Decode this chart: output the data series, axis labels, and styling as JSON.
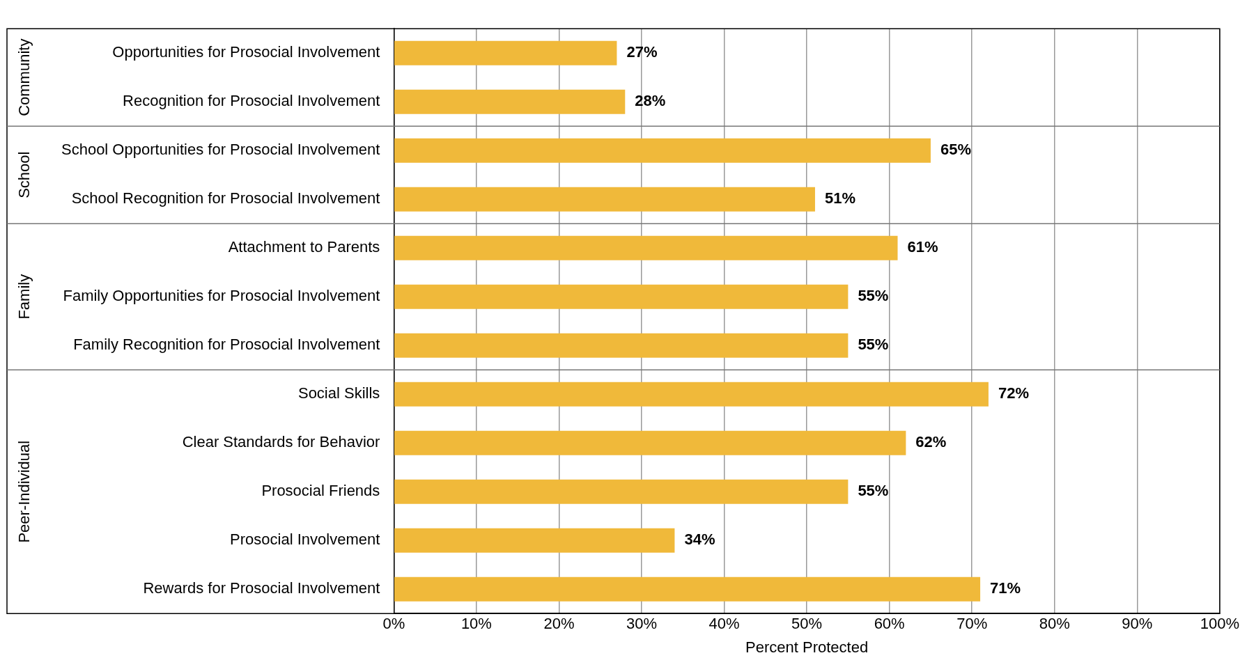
{
  "chart_data": {
    "type": "bar",
    "orientation": "horizontal",
    "xlabel": "Percent Protected",
    "categories": [
      "Opportunities for Prosocial Involvement",
      "Recognition for Prosocial Involvement",
      "School Opportunities for Prosocial Involvement",
      "School Recognition for Prosocial Involvement",
      "Attachment to Parents",
      "Family Opportunities for Prosocial Involvement",
      "Family Recognition for Prosocial Involvement",
      "Social Skills",
      "Clear Standards for Behavior",
      "Prosocial Friends",
      "Prosocial Involvement",
      "Rewards for Prosocial Involvement"
    ],
    "values": [
      27,
      28,
      65,
      51,
      61,
      55,
      55,
      72,
      62,
      55,
      34,
      71
    ],
    "color": "#f0b93a",
    "data_labels": true,
    "value_labels": [
      "27%",
      "28%",
      "65%",
      "51%",
      "61%",
      "55%",
      "55%",
      "72%",
      "62%",
      "55%",
      "34%",
      "71%"
    ],
    "xlim": [
      0,
      100
    ],
    "xticks": [
      {
        "value": 0,
        "label": "0%"
      },
      {
        "value": 10,
        "label": "10%"
      },
      {
        "value": 20,
        "label": "20%"
      },
      {
        "value": 30,
        "label": "30%"
      },
      {
        "value": 40,
        "label": "40%"
      },
      {
        "value": 50,
        "label": "50%"
      },
      {
        "value": 60,
        "label": "60%"
      },
      {
        "value": 70,
        "label": "70%"
      },
      {
        "value": 80,
        "label": "80%"
      },
      {
        "value": 90,
        "label": "90%"
      },
      {
        "value": 100,
        "label": "100%"
      }
    ],
    "grid": "x",
    "legend": false,
    "annotations": [
      "Community",
      "School",
      "Family",
      "Peer-Individual"
    ]
  }
}
